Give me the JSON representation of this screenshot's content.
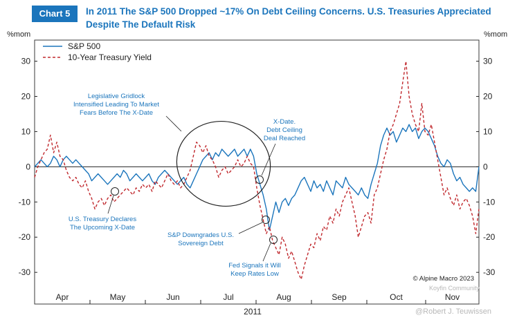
{
  "header": {
    "tag": "Chart 5",
    "title_line1": "In 2011 The S&P 500 Dropped ~17% On Debt Ceiling Concerns. U.S. Treasuries Appreciated",
    "title_line2": "Despite The Default Risk"
  },
  "chart_data": {
    "type": "line",
    "unit_left": "%mom",
    "unit_right": "%mom",
    "yticks": [
      30,
      20,
      10,
      0,
      -10,
      -20,
      -30
    ],
    "ylim": [
      -39,
      36
    ],
    "x_tick_labels": [
      "Apr",
      "May",
      "Jun",
      "Jul",
      "Aug",
      "Sep",
      "Oct",
      "Nov"
    ],
    "xlabel": "2011",
    "series": [
      {
        "name": "S&P 500",
        "color": "#1b75bc",
        "style": "solid",
        "values": [
          0,
          1,
          2,
          1,
          0,
          1,
          3,
          2,
          0,
          2,
          3,
          2,
          1,
          2,
          1,
          0,
          -1,
          -2,
          -4,
          -3,
          -2,
          -3,
          -4,
          -5,
          -4,
          -3,
          -2,
          -3,
          -1,
          -2,
          -4,
          -3,
          -2,
          -3,
          -4,
          -3,
          -2,
          -4,
          -5,
          -3,
          -2,
          -1,
          -2,
          -3,
          -4,
          -5,
          -4,
          -3,
          -5,
          -6,
          -4,
          -2,
          0,
          2,
          3,
          4,
          2,
          4,
          3,
          5,
          4,
          3,
          4,
          5,
          3,
          4,
          5,
          3,
          5,
          3,
          -2,
          -5,
          -8,
          -12,
          -18,
          -14,
          -10,
          -13,
          -10,
          -9,
          -11,
          -9,
          -8,
          -6,
          -4,
          -3,
          -5,
          -7,
          -4,
          -6,
          -5,
          -7,
          -4,
          -6,
          -8,
          -4,
          -5,
          -6,
          -3,
          -5,
          -6,
          -7,
          -8,
          -6,
          -8,
          -9,
          -5,
          -2,
          1,
          6,
          9,
          11,
          9,
          10,
          7,
          9,
          11,
          10,
          12,
          10,
          11,
          8,
          10,
          11,
          10,
          8,
          6,
          3,
          1,
          0,
          2,
          1,
          -2,
          -4,
          -3,
          -5,
          -6,
          -7,
          -6,
          -7,
          0
        ],
        "annotation_points": [
          {
            "label": "X-Date. Debt Ceiling Deal Reached",
            "value": -6
          }
        ]
      },
      {
        "name": "10-Year Treasury Yield",
        "color": "#c0282d",
        "style": "dashed",
        "values": [
          -3,
          0,
          2,
          4,
          5,
          9,
          4,
          7,
          3,
          2,
          -1,
          -3,
          -4,
          -3,
          -5,
          -6,
          -4,
          -7,
          -9,
          -12,
          -10,
          -9,
          -11,
          -9,
          -8,
          -10,
          -9,
          -8,
          -7,
          -6,
          -7,
          -8,
          -6,
          -7,
          -5,
          -6,
          -5,
          -7,
          -4,
          -5,
          -6,
          -4,
          -2,
          -4,
          -5,
          -4,
          -6,
          -5,
          -3,
          -1,
          3,
          7,
          6,
          4,
          6,
          3,
          2,
          0,
          -3,
          -1,
          0,
          -2,
          -1,
          0,
          2,
          0,
          1,
          3,
          1,
          0,
          -6,
          -11,
          -15,
          -19,
          -17,
          -21,
          -23,
          -25,
          -20,
          -22,
          -26,
          -24,
          -27,
          -30,
          -32,
          -28,
          -25,
          -22,
          -23,
          -19,
          -21,
          -17,
          -18,
          -14,
          -16,
          -12,
          -14,
          -10,
          -8,
          -6,
          -10,
          -14,
          -20,
          -17,
          -14,
          -13,
          -16,
          -8,
          -6,
          -2,
          2,
          5,
          10,
          12,
          15,
          18,
          24,
          30,
          20,
          15,
          12,
          10,
          18,
          10,
          9,
          12,
          7,
          2,
          -3,
          -8,
          -6,
          -9,
          -11,
          -8,
          -12,
          -10,
          -9,
          -11,
          -14,
          -19,
          -12
        ]
      }
    ],
    "legend": {
      "position": "top-left"
    },
    "annotations": [
      "Legislative Gridlock Intensified Leading To Market Fears Before The X-Date",
      "X-Date. Debt Ceiling Deal Reached",
      "U.S. Treasury Declares The Upcoming X-Date",
      "S&P Downgrades U.S. Sovereign Debt",
      "Fed Signals it Will Keep Rates Low"
    ],
    "source": "© Alpine Macro 2023"
  },
  "annotation_lines": {
    "gridlock": [
      "Legislative Gridlock",
      "Intensified Leading To Market",
      "Fears Before The X-Date"
    ],
    "xdate": [
      "X-Date.",
      "Debt Ceiling",
      "Deal Reached"
    ],
    "treasury": [
      "U.S. Treasury Declares",
      "The Upcoming X-Date"
    ],
    "downgrade": [
      "S&P Downgrades U.S.",
      "Sovereign Debt"
    ],
    "fed": [
      "Fed Signals it Will",
      "Keep Rates Low"
    ]
  },
  "watermark": {
    "community": "Koyfin Community",
    "author": "@Robert J. Teuwissen"
  }
}
